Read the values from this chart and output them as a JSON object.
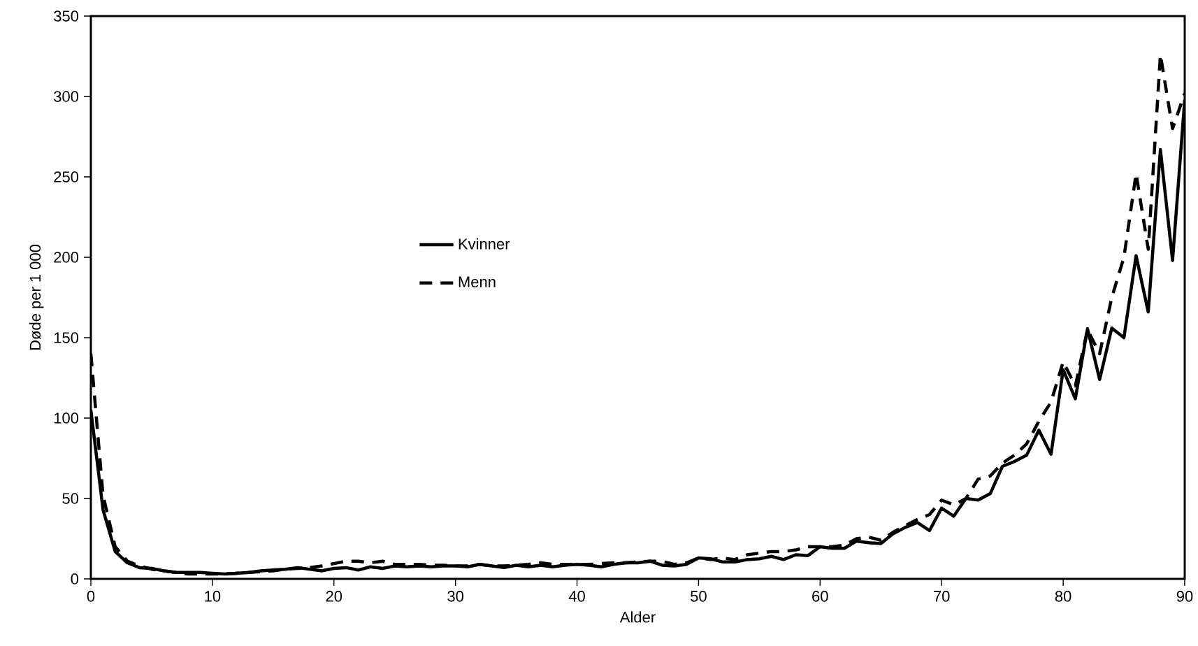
{
  "chart_data": {
    "type": "line",
    "xlabel": "Alder",
    "ylabel": "Døde per 1 000",
    "xlim": [
      0,
      90
    ],
    "ylim": [
      0,
      350
    ],
    "xticks": [
      0,
      10,
      20,
      30,
      40,
      50,
      60,
      70,
      80,
      90
    ],
    "yticks": [
      0,
      50,
      100,
      150,
      200,
      250,
      300,
      350
    ],
    "x": [
      0,
      1,
      2,
      3,
      4,
      5,
      6,
      7,
      8,
      9,
      10,
      11,
      12,
      13,
      14,
      15,
      16,
      17,
      18,
      19,
      20,
      21,
      22,
      23,
      24,
      25,
      26,
      27,
      28,
      29,
      30,
      31,
      32,
      33,
      34,
      35,
      36,
      37,
      38,
      39,
      40,
      41,
      42,
      43,
      44,
      45,
      46,
      47,
      48,
      49,
      50,
      51,
      52,
      53,
      54,
      55,
      56,
      57,
      58,
      59,
      60,
      61,
      62,
      63,
      64,
      65,
      66,
      67,
      68,
      69,
      70,
      71,
      72,
      73,
      74,
      75,
      76,
      77,
      78,
      79,
      80,
      81,
      82,
      83,
      84,
      85,
      86,
      87,
      88,
      89,
      90
    ],
    "grid": false,
    "legend": "left",
    "series": [
      {
        "name": "Kvinner",
        "color": "#000000",
        "line_style": "solid",
        "values": [
          105,
          43,
          17,
          10,
          7,
          6.5,
          5,
          4,
          4,
          4,
          3.5,
          3,
          3.5,
          4,
          5,
          5.5,
          6,
          7,
          6,
          5,
          6.5,
          7,
          5.5,
          7.5,
          6.5,
          8,
          7.5,
          8,
          7.5,
          8,
          8,
          7.5,
          9,
          8,
          7,
          8.5,
          7.5,
          8.5,
          7.5,
          8.5,
          9,
          8.5,
          7.5,
          9,
          10,
          10,
          11,
          8.5,
          8,
          9,
          13,
          12.5,
          10.5,
          10.5,
          12,
          12.5,
          14,
          12,
          15,
          14.5,
          20,
          19,
          19,
          23.5,
          22.5,
          22,
          28,
          32,
          35,
          30,
          44,
          39,
          50,
          49,
          53,
          70,
          73,
          77,
          92.5,
          77.5,
          130,
          112,
          155.5,
          124,
          156,
          150,
          201,
          166,
          267,
          198,
          298
        ]
      },
      {
        "name": "Menn",
        "color": "#000000",
        "line_style": "dashed",
        "values": [
          140,
          52,
          20,
          11,
          8,
          6,
          5,
          4,
          3,
          3,
          3,
          3,
          3.5,
          4,
          4.5,
          5,
          6,
          6.5,
          7,
          8,
          9.5,
          11,
          11,
          10,
          11,
          9,
          9,
          9,
          8.5,
          8.5,
          8,
          8,
          9,
          8,
          8,
          8.5,
          9,
          10,
          9,
          9,
          9,
          9,
          9.5,
          10,
          10,
          10.5,
          11,
          11,
          9,
          10,
          13,
          12,
          13,
          12,
          15,
          16,
          17,
          17,
          18,
          20,
          20,
          20,
          21,
          25,
          26,
          24,
          29,
          33,
          37,
          40,
          49,
          46,
          50,
          62,
          64,
          72,
          77,
          84,
          98,
          110,
          135,
          120,
          155,
          140,
          175,
          200,
          252,
          205,
          326,
          280,
          302
        ]
      }
    ]
  }
}
